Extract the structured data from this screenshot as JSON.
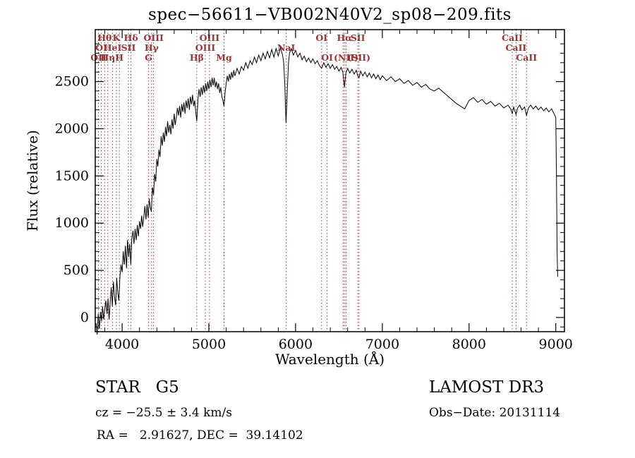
{
  "figure": {
    "colors": {
      "background": "#ffffff",
      "spectrum": "#000000",
      "frame": "#000000",
      "lines": "#a03232"
    }
  },
  "footer": {
    "class_label": "STAR   G5",
    "survey": "LAMOST DR3",
    "cz": "cz = −25.5 ± 3.4 km/s",
    "obs_date": "Obs−Date: 20131114",
    "coords": "RA =   2.91627, DEC =  39.14102"
  },
  "chart_data": {
    "type": "line",
    "title": "spec−56611−VB002N40V2_sp08−209.fits",
    "xlabel": "Wavelength (Å)",
    "ylabel": "Flux (relative)",
    "xlim": [
      3690,
      9100
    ],
    "ylim": [
      -150,
      3050
    ],
    "x_ticks": [
      4000,
      5000,
      6000,
      7000,
      8000,
      9000
    ],
    "y_ticks": [
      0,
      500,
      1000,
      1500,
      2000,
      2500
    ],
    "x_minor_step": 200,
    "y_minor_step": 100,
    "grid": false,
    "legend": "none",
    "spectral_lines": [
      3727,
      3760,
      3798,
      3835,
      3889,
      3933,
      3968,
      4072,
      4102,
      4305,
      4340,
      4363,
      4861,
      4959,
      5007,
      5175,
      5892,
      6300,
      6363,
      6548,
      6563,
      6583,
      6717,
      6731,
      8498,
      8542,
      8662
    ],
    "line_labels": [
      {
        "text": "Hθ",
        "wavelength": 3798,
        "row": 1
      },
      {
        "text": "K",
        "wavelength": 3933,
        "row": 1
      },
      {
        "text": "Hδ",
        "wavelength": 4102,
        "row": 1
      },
      {
        "text": "OIII",
        "wavelength": 4363,
        "row": 1
      },
      {
        "text": "OIII",
        "wavelength": 5007,
        "row": 1
      },
      {
        "text": "OI",
        "wavelength": 6300,
        "row": 1
      },
      {
        "text": "Hα",
        "wavelength": 6563,
        "row": 1
      },
      {
        "text": "SII",
        "wavelength": 6717,
        "row": 1
      },
      {
        "text": "CaII",
        "wavelength": 8498,
        "row": 1
      },
      {
        "text": "OI",
        "wavelength": 3760,
        "row": 2
      },
      {
        "text": "HeI",
        "wavelength": 3889,
        "row": 2
      },
      {
        "text": "SII",
        "wavelength": 4072,
        "row": 2
      },
      {
        "text": "Hγ",
        "wavelength": 4340,
        "row": 2
      },
      {
        "text": "OIII",
        "wavelength": 4959,
        "row": 2
      },
      {
        "text": "NaI",
        "wavelength": 5892,
        "row": 2
      },
      {
        "text": "CaII",
        "wavelength": 8542,
        "row": 2
      },
      {
        "text": "OII",
        "wavelength": 3727,
        "row": 3
      },
      {
        "text": "Hη",
        "wavelength": 3835,
        "row": 3
      },
      {
        "text": "H",
        "wavelength": 3968,
        "row": 3
      },
      {
        "text": "G",
        "wavelength": 4305,
        "row": 3
      },
      {
        "text": "Hβ",
        "wavelength": 4861,
        "row": 3
      },
      {
        "text": "Mg",
        "wavelength": 5175,
        "row": 3
      },
      {
        "text": "OI",
        "wavelength": 6363,
        "row": 3
      },
      {
        "text": "(NII)",
        "wavelength": 6583,
        "row": 3
      },
      {
        "text": "(SII)",
        "wavelength": 6731,
        "row": 3
      },
      {
        "text": "CaII",
        "wavelength": 8662,
        "row": 3
      }
    ],
    "series": [
      {
        "name": "spectrum",
        "points": [
          [
            3700,
            -60
          ],
          [
            3712,
            -180
          ],
          [
            3725,
            40
          ],
          [
            3737,
            -120
          ],
          [
            3750,
            60
          ],
          [
            3762,
            -40
          ],
          [
            3775,
            120
          ],
          [
            3787,
            -20
          ],
          [
            3800,
            90
          ],
          [
            3812,
            180
          ],
          [
            3825,
            40
          ],
          [
            3837,
            200
          ],
          [
            3850,
            -20
          ],
          [
            3862,
            160
          ],
          [
            3875,
            320
          ],
          [
            3887,
            120
          ],
          [
            3900,
            380
          ],
          [
            3912,
            220
          ],
          [
            3925,
            130
          ],
          [
            3937,
            420
          ],
          [
            3950,
            260
          ],
          [
            3962,
            180
          ],
          [
            3975,
            430
          ],
          [
            3987,
            560
          ],
          [
            4000,
            480
          ],
          [
            4012,
            700
          ],
          [
            4025,
            560
          ],
          [
            4037,
            760
          ],
          [
            4050,
            520
          ],
          [
            4062,
            820
          ],
          [
            4075,
            640
          ],
          [
            4087,
            780
          ],
          [
            4100,
            560
          ],
          [
            4112,
            840
          ],
          [
            4125,
            920
          ],
          [
            4137,
            780
          ],
          [
            4150,
            940
          ],
          [
            4162,
            820
          ],
          [
            4175,
            980
          ],
          [
            4187,
            860
          ],
          [
            4200,
            1020
          ],
          [
            4212,
            940
          ],
          [
            4225,
            1080
          ],
          [
            4237,
            960
          ],
          [
            4250,
            1060
          ],
          [
            4262,
            1180
          ],
          [
            4275,
            1040
          ],
          [
            4287,
            1200
          ],
          [
            4300,
            1060
          ],
          [
            4312,
            1260
          ],
          [
            4325,
            1160
          ],
          [
            4337,
            1120
          ],
          [
            4350,
            1380
          ],
          [
            4362,
            1300
          ],
          [
            4375,
            1520
          ],
          [
            4387,
            1440
          ],
          [
            4400,
            1680
          ],
          [
            4412,
            1600
          ],
          [
            4425,
            1780
          ],
          [
            4437,
            1700
          ],
          [
            4450,
            1920
          ],
          [
            4462,
            1820
          ],
          [
            4475,
            1960
          ],
          [
            4487,
            1860
          ],
          [
            4500,
            2020
          ],
          [
            4512,
            1920
          ],
          [
            4525,
            2080
          ],
          [
            4537,
            1960
          ],
          [
            4550,
            2040
          ],
          [
            4562,
            1940
          ],
          [
            4575,
            2100
          ],
          [
            4587,
            2000
          ],
          [
            4600,
            2160
          ],
          [
            4612,
            2040
          ],
          [
            4625,
            2120
          ],
          [
            4637,
            2220
          ],
          [
            4650,
            2140
          ],
          [
            4662,
            2240
          ],
          [
            4675,
            2120
          ],
          [
            4687,
            2260
          ],
          [
            4700,
            2180
          ],
          [
            4712,
            2280
          ],
          [
            4725,
            2160
          ],
          [
            4737,
            2300
          ],
          [
            4750,
            2220
          ],
          [
            4762,
            2320
          ],
          [
            4775,
            2200
          ],
          [
            4787,
            2340
          ],
          [
            4800,
            2260
          ],
          [
            4812,
            2360
          ],
          [
            4825,
            2240
          ],
          [
            4837,
            2300
          ],
          [
            4850,
            2160
          ],
          [
            4861,
            2080
          ],
          [
            4875,
            2320
          ],
          [
            4887,
            2420
          ],
          [
            4900,
            2340
          ],
          [
            4912,
            2440
          ],
          [
            4925,
            2360
          ],
          [
            4937,
            2460
          ],
          [
            4950,
            2380
          ],
          [
            4962,
            2480
          ],
          [
            4975,
            2400
          ],
          [
            4987,
            2500
          ],
          [
            5000,
            2420
          ],
          [
            5012,
            2520
          ],
          [
            5025,
            2440
          ],
          [
            5037,
            2540
          ],
          [
            5050,
            2460
          ],
          [
            5062,
            2540
          ],
          [
            5075,
            2440
          ],
          [
            5087,
            2500
          ],
          [
            5100,
            2420
          ],
          [
            5112,
            2480
          ],
          [
            5125,
            2380
          ],
          [
            5137,
            2440
          ],
          [
            5150,
            2340
          ],
          [
            5162,
            2300
          ],
          [
            5175,
            2240
          ],
          [
            5187,
            2380
          ],
          [
            5200,
            2480
          ],
          [
            5212,
            2560
          ],
          [
            5225,
            2500
          ],
          [
            5237,
            2580
          ],
          [
            5250,
            2520
          ],
          [
            5262,
            2600
          ],
          [
            5275,
            2540
          ],
          [
            5287,
            2620
          ],
          [
            5300,
            2560
          ],
          [
            5325,
            2640
          ],
          [
            5350,
            2580
          ],
          [
            5375,
            2660
          ],
          [
            5400,
            2620
          ],
          [
            5425,
            2700
          ],
          [
            5450,
            2640
          ],
          [
            5475,
            2720
          ],
          [
            5500,
            2680
          ],
          [
            5525,
            2760
          ],
          [
            5550,
            2700
          ],
          [
            5575,
            2780
          ],
          [
            5600,
            2720
          ],
          [
            5625,
            2800
          ],
          [
            5650,
            2740
          ],
          [
            5675,
            2820
          ],
          [
            5700,
            2750
          ],
          [
            5725,
            2840
          ],
          [
            5750,
            2760
          ],
          [
            5775,
            2850
          ],
          [
            5800,
            2770
          ],
          [
            5825,
            2860
          ],
          [
            5850,
            2780
          ],
          [
            5862,
            2710
          ],
          [
            5875,
            2480
          ],
          [
            5890,
            2060
          ],
          [
            5905,
            2430
          ],
          [
            5918,
            2700
          ],
          [
            5930,
            2800
          ],
          [
            5950,
            2850
          ],
          [
            5975,
            2780
          ],
          [
            6000,
            2830
          ],
          [
            6025,
            2760
          ],
          [
            6050,
            2800
          ],
          [
            6075,
            2730
          ],
          [
            6100,
            2770
          ],
          [
            6125,
            2710
          ],
          [
            6150,
            2750
          ],
          [
            6175,
            2700
          ],
          [
            6200,
            2740
          ],
          [
            6225,
            2690
          ],
          [
            6250,
            2720
          ],
          [
            6275,
            2670
          ],
          [
            6300,
            2640
          ],
          [
            6325,
            2700
          ],
          [
            6350,
            2650
          ],
          [
            6375,
            2690
          ],
          [
            6400,
            2640
          ],
          [
            6425,
            2680
          ],
          [
            6450,
            2630
          ],
          [
            6475,
            2660
          ],
          [
            6500,
            2610
          ],
          [
            6525,
            2650
          ],
          [
            6545,
            2600
          ],
          [
            6563,
            2440
          ],
          [
            6580,
            2590
          ],
          [
            6600,
            2640
          ],
          [
            6625,
            2590
          ],
          [
            6650,
            2630
          ],
          [
            6675,
            2580
          ],
          [
            6700,
            2620
          ],
          [
            6717,
            2560
          ],
          [
            6731,
            2540
          ],
          [
            6750,
            2610
          ],
          [
            6775,
            2560
          ],
          [
            6800,
            2600
          ],
          [
            6825,
            2550
          ],
          [
            6850,
            2590
          ],
          [
            6875,
            2540
          ],
          [
            6900,
            2580
          ],
          [
            6925,
            2530
          ],
          [
            6950,
            2570
          ],
          [
            6975,
            2520
          ],
          [
            7000,
            2560
          ],
          [
            7050,
            2510
          ],
          [
            7100,
            2550
          ],
          [
            7150,
            2500
          ],
          [
            7200,
            2530
          ],
          [
            7250,
            2480
          ],
          [
            7300,
            2510
          ],
          [
            7350,
            2460
          ],
          [
            7400,
            2490
          ],
          [
            7450,
            2440
          ],
          [
            7500,
            2470
          ],
          [
            7550,
            2420
          ],
          [
            7600,
            2400
          ],
          [
            7650,
            2430
          ],
          [
            7700,
            2390
          ],
          [
            7750,
            2350
          ],
          [
            7800,
            2310
          ],
          [
            7850,
            2270
          ],
          [
            7900,
            2240
          ],
          [
            7950,
            2210
          ],
          [
            8000,
            2300
          ],
          [
            8050,
            2330
          ],
          [
            8100,
            2280
          ],
          [
            8150,
            2310
          ],
          [
            8200,
            2260
          ],
          [
            8250,
            2290
          ],
          [
            8300,
            2240
          ],
          [
            8350,
            2270
          ],
          [
            8400,
            2220
          ],
          [
            8450,
            2250
          ],
          [
            8480,
            2210
          ],
          [
            8498,
            2160
          ],
          [
            8515,
            2230
          ],
          [
            8542,
            2150
          ],
          [
            8560,
            2220
          ],
          [
            8585,
            2250
          ],
          [
            8610,
            2200
          ],
          [
            8640,
            2230
          ],
          [
            8662,
            2140
          ],
          [
            8685,
            2220
          ],
          [
            8710,
            2250
          ],
          [
            8740,
            2210
          ],
          [
            8770,
            2240
          ],
          [
            8800,
            2200
          ],
          [
            8830,
            2230
          ],
          [
            8860,
            2190
          ],
          [
            8890,
            2220
          ],
          [
            8920,
            2180
          ],
          [
            8950,
            2210
          ],
          [
            8975,
            2170
          ],
          [
            9000,
            2120
          ],
          [
            9008,
            1500
          ],
          [
            9015,
            700
          ],
          [
            9022,
            430
          ]
        ]
      }
    ]
  }
}
